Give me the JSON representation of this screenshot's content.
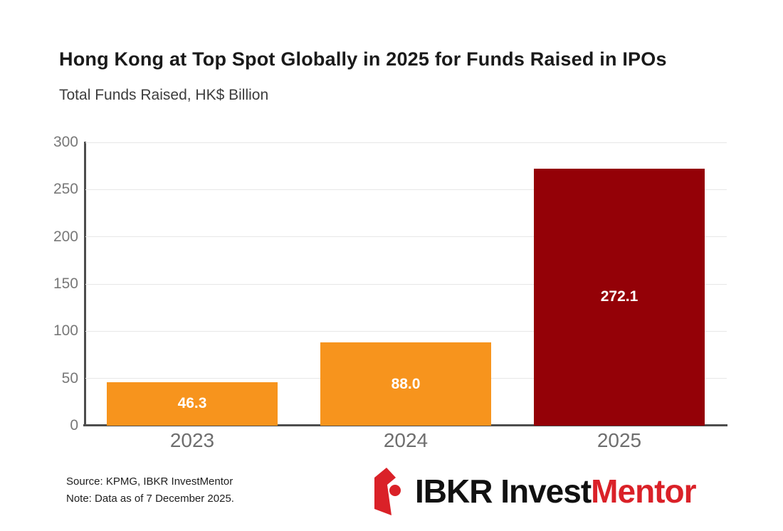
{
  "header": {
    "title": "Hong Kong at Top Spot Globally in 2025 for Funds Raised in IPOs",
    "subtitle": "Total Funds Raised, HK$ Billion"
  },
  "chart_data": {
    "type": "bar",
    "title": "Hong Kong at Top Spot Globally in 2025 for Funds Raised in IPOs",
    "subtitle": "Total Funds Raised, HK$ Billion",
    "categories": [
      "2023",
      "2024",
      "2025"
    ],
    "values": [
      46.3,
      88.0,
      272.1
    ],
    "value_labels": [
      "46.3",
      "88.0",
      "272.1"
    ],
    "bar_colors": [
      "#f7941d",
      "#f7941d",
      "#940107"
    ],
    "value_label_color": "#ffffff",
    "xlabel": "",
    "ylabel": "Total Funds Raised, HK$ Billion",
    "ylim": [
      0,
      300
    ],
    "yticks": [
      0,
      50,
      100,
      150,
      200,
      250,
      300
    ],
    "grid": "horizontal",
    "legend": "none",
    "style": {
      "grid_color": "#e7e7e7",
      "axis_color": "#4d4d4d",
      "ytick_color": "#787878",
      "xtick_color": "#6e6e6e"
    }
  },
  "footer": {
    "source": "Source: KPMG, IBKR InvestMentor",
    "note": "Note: Data as of 7 December 2025."
  },
  "logo": {
    "text_black": "IBKR Invest",
    "text_red": "Mentor",
    "icon": "ibkr-logo-mark",
    "mark_color": "#da2128"
  }
}
